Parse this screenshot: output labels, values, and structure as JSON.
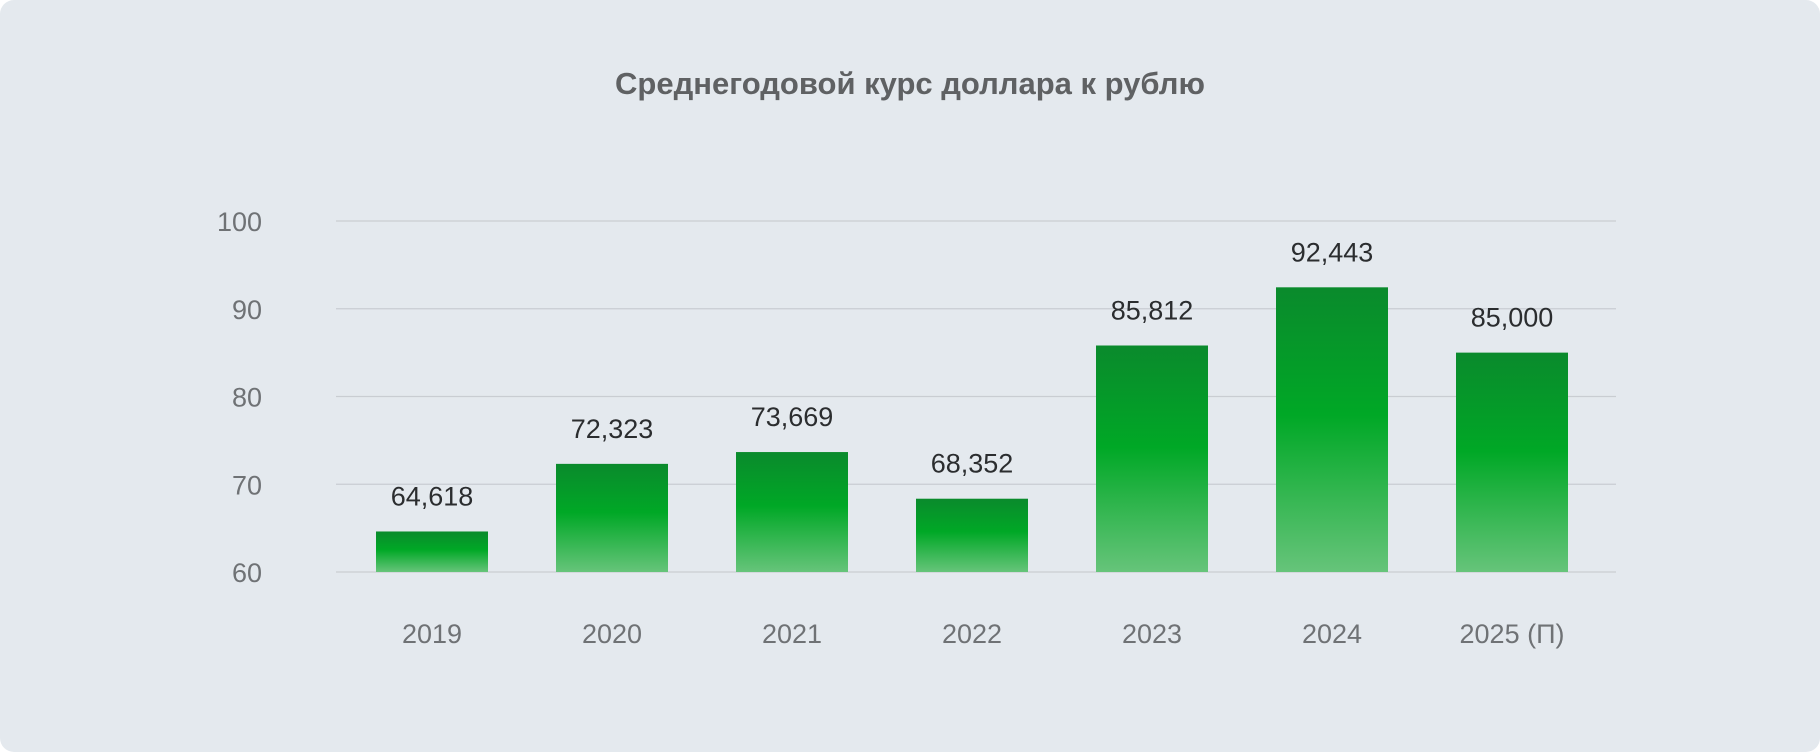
{
  "chart_data": {
    "type": "bar",
    "title": "Среднегодовой курс доллара к рублю",
    "xlabel": "",
    "ylabel": "",
    "categories": [
      "2019",
      "2020",
      "2021",
      "2022",
      "2023",
      "2024",
      "2025 (П)"
    ],
    "values": [
      64.618,
      72.323,
      73.669,
      68.352,
      85.812,
      92.443,
      85.0
    ],
    "value_labels": [
      "64,618",
      "72,323",
      "73,669",
      "68,352",
      "85,812",
      "92,443",
      "85,000"
    ],
    "ylim": [
      60,
      100
    ],
    "yticks": [
      60,
      70,
      80,
      90,
      100
    ],
    "grid": true,
    "legend": "none",
    "colors": {
      "bar_top": "#0a8a2c",
      "bar_mid": "#00a826",
      "bar_bottom": "#66c47a",
      "background": "#e4e9ee"
    }
  }
}
